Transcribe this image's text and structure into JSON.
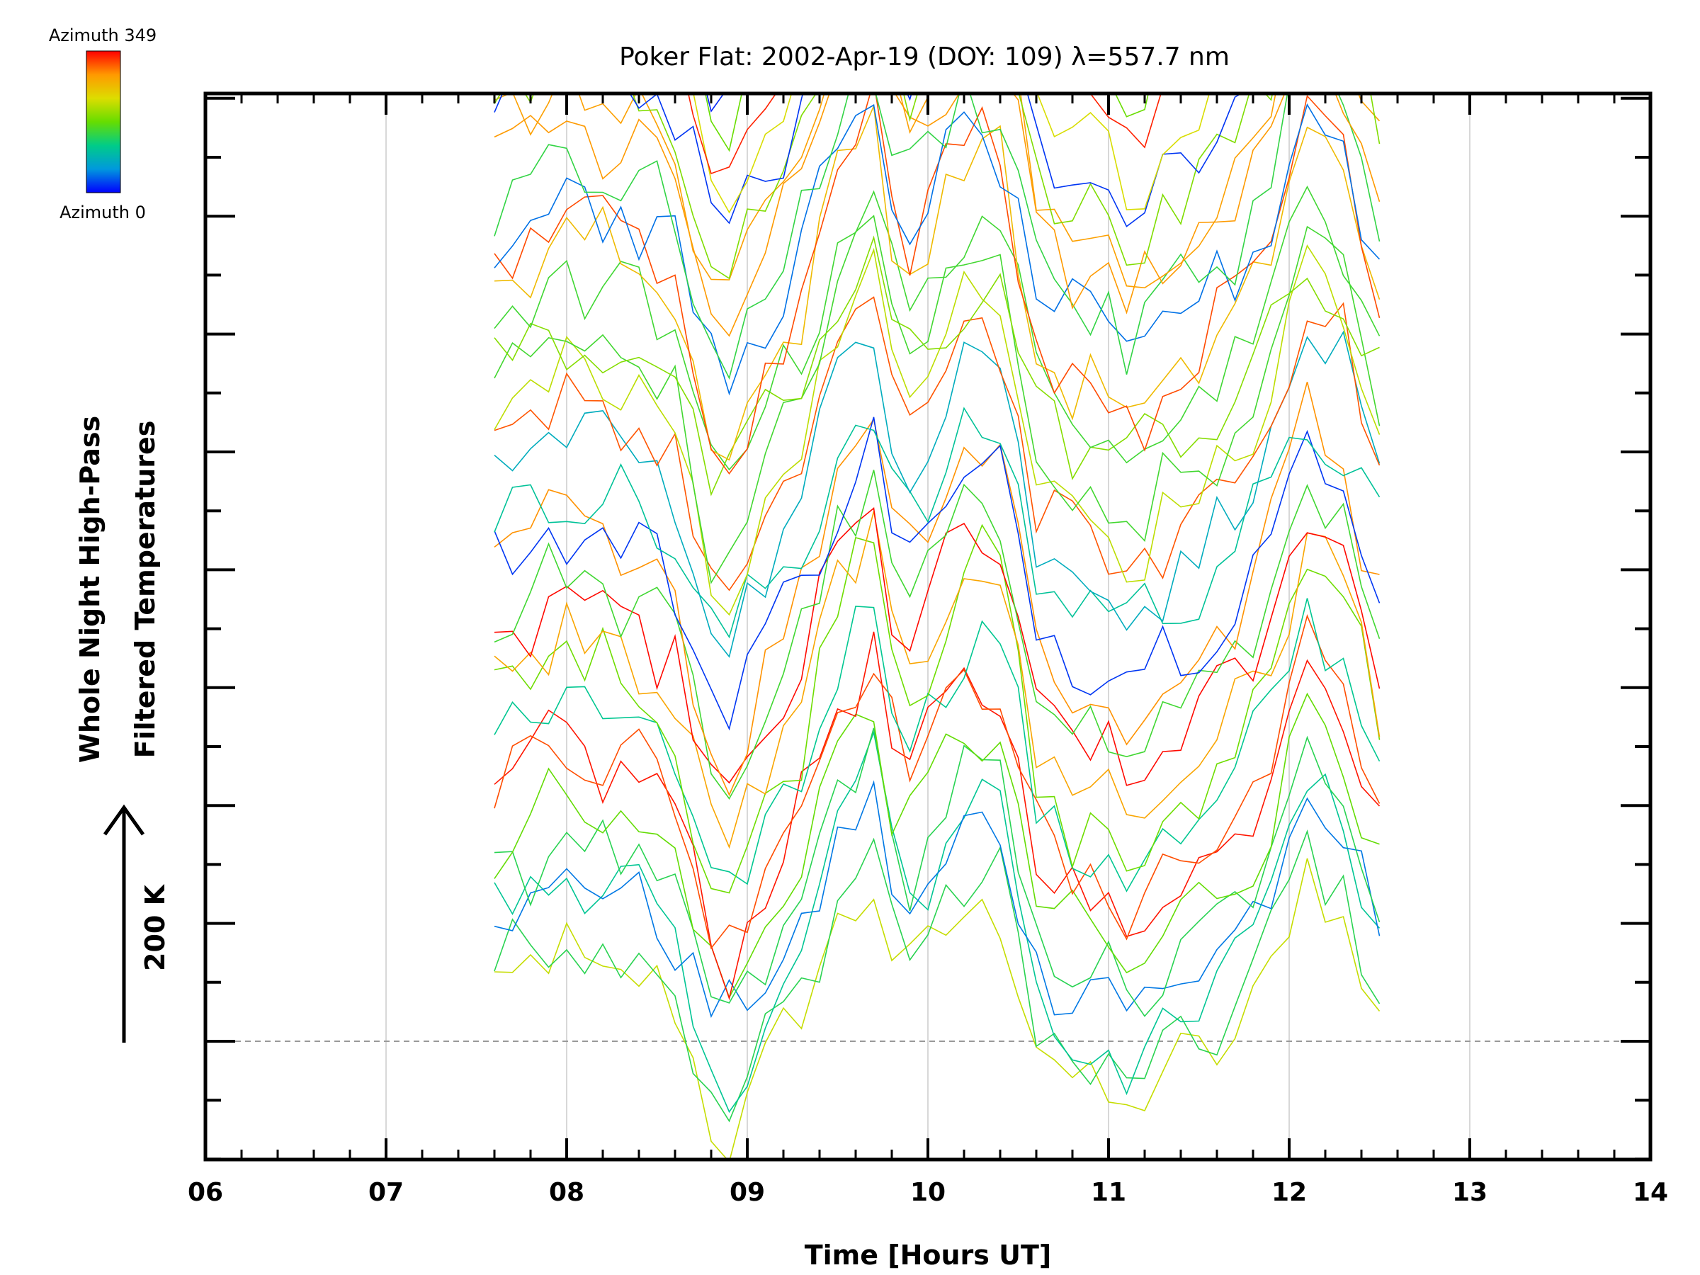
{
  "chart_data": {
    "type": "line",
    "title": "Poker Flat: 2002-Apr-19 (DOY: 109) λ=557.7 nm",
    "xlabel": "Time [Hours UT]",
    "ylabel_line1": "Whole Night High-Pass",
    "ylabel_line2": "Filtered Temperatures",
    "scale_label": "200 K",
    "xlim": [
      6,
      14
    ],
    "x_tick_labels": [
      "06",
      "07",
      "08",
      "09",
      "10",
      "11",
      "12",
      "13",
      "14"
    ],
    "baseline_hours_range": [
      6,
      14
    ],
    "colorbar": {
      "top_label": "Azimuth 349",
      "bottom_label": "Azimuth 0",
      "colors": [
        "#ff0000",
        "#ff9900",
        "#dddd00",
        "#66dd00",
        "#00cc88",
        "#0099dd",
        "#0000ff"
      ]
    },
    "series_count": 48,
    "time_start": 7.6,
    "time_end": 12.5,
    "sample_step": 0.1,
    "base_profile": {
      "x": [
        7.6,
        7.8,
        8.0,
        8.2,
        8.4,
        8.6,
        8.75,
        8.85,
        8.95,
        9.1,
        9.3,
        9.5,
        9.7,
        9.85,
        10.0,
        10.2,
        10.4,
        10.6,
        10.8,
        11.0,
        11.1,
        11.3,
        11.5,
        11.7,
        11.9,
        12.1,
        12.3,
        12.5
      ],
      "y": [
        40,
        55,
        80,
        60,
        55,
        20,
        -50,
        -95,
        -75,
        -30,
        20,
        110,
        150,
        40,
        70,
        125,
        120,
        -10,
        -40,
        -45,
        -70,
        -40,
        -20,
        10,
        60,
        150,
        110,
        20
      ]
    }
  }
}
